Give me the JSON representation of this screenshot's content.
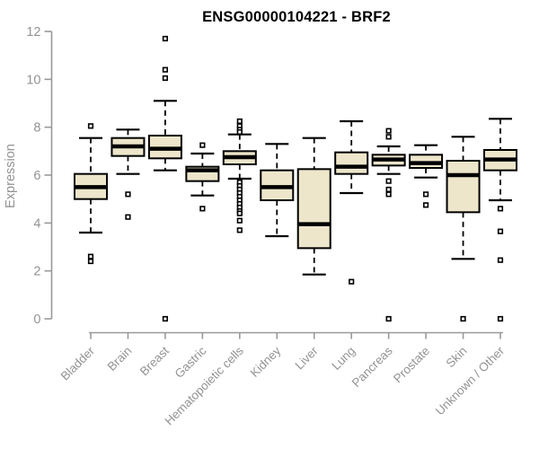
{
  "chart_data": {
    "type": "boxplot",
    "title": "ENSG00000104221 - BRF2",
    "ylabel": "Expression",
    "xlabel": "",
    "ylim": [
      0,
      12
    ],
    "yticks": [
      0,
      2,
      4,
      6,
      8,
      10,
      12
    ],
    "grid": false,
    "legend": "none",
    "categories": [
      "Bladder",
      "Brain",
      "Breast",
      "Gastric",
      "Hematopoietic cells",
      "Kidney",
      "Liver",
      "Lung",
      "Pancreas",
      "Prostate",
      "Skin",
      "Unknown / Other"
    ],
    "series": [
      {
        "name": "Bladder",
        "low": 3.6,
        "q1": 5.0,
        "median": 5.5,
        "q3": 6.05,
        "high": 7.55,
        "outliers": [
          8.05,
          2.6,
          2.4
        ]
      },
      {
        "name": "Brain",
        "low": 6.05,
        "q1": 6.8,
        "median": 7.2,
        "q3": 7.55,
        "high": 7.9,
        "outliers": [
          5.2,
          4.25
        ]
      },
      {
        "name": "Breast",
        "low": 6.2,
        "q1": 6.7,
        "median": 7.1,
        "q3": 7.65,
        "high": 9.1,
        "outliers": [
          11.7,
          10.4,
          10.05,
          0
        ]
      },
      {
        "name": "Gastric",
        "low": 5.15,
        "q1": 5.75,
        "median": 6.2,
        "q3": 6.35,
        "high": 6.9,
        "outliers": [
          7.25,
          4.6
        ]
      },
      {
        "name": "Hematopoietic cells",
        "low": 5.85,
        "q1": 6.45,
        "median": 6.75,
        "q3": 7.0,
        "high": 7.7,
        "outliers": [
          8.25,
          8.05,
          7.9,
          7.8,
          5.7,
          5.55,
          5.4,
          5.25,
          5.1,
          4.95,
          4.8,
          4.65,
          4.5,
          4.4,
          4.1,
          3.7
        ]
      },
      {
        "name": "Kidney",
        "low": 3.45,
        "q1": 4.95,
        "median": 5.5,
        "q3": 6.2,
        "high": 7.3,
        "outliers": []
      },
      {
        "name": "Liver",
        "low": 1.85,
        "q1": 2.95,
        "median": 3.95,
        "q3": 6.25,
        "high": 7.55,
        "outliers": []
      },
      {
        "name": "Lung",
        "low": 5.25,
        "q1": 6.05,
        "median": 6.35,
        "q3": 6.95,
        "high": 8.25,
        "outliers": [
          1.55
        ]
      },
      {
        "name": "Pancreas",
        "low": 6.05,
        "q1": 6.4,
        "median": 6.65,
        "q3": 6.85,
        "high": 7.2,
        "outliers": [
          7.85,
          7.6,
          5.75,
          5.4,
          5.2,
          0
        ]
      },
      {
        "name": "Prostate",
        "low": 5.9,
        "q1": 6.3,
        "median": 6.5,
        "q3": 6.85,
        "high": 7.25,
        "outliers": [
          5.2,
          4.75
        ]
      },
      {
        "name": "Skin",
        "low": 2.5,
        "q1": 4.45,
        "median": 6.0,
        "q3": 6.6,
        "high": 7.6,
        "outliers": [
          0
        ]
      },
      {
        "name": "Unknown / Other",
        "low": 4.95,
        "q1": 6.2,
        "median": 6.65,
        "q3": 7.05,
        "high": 8.35,
        "outliers": [
          4.6,
          3.65,
          2.45,
          0
        ]
      }
    ],
    "colors": {
      "box_fill": "#EDE6CB",
      "box_border": "#000000",
      "median": "#000000",
      "whisker": "#000000",
      "outlier_stroke": "#000000",
      "outlier_fill": "#FFFFFF",
      "axis": "#999999",
      "tick_label": "#939393",
      "title": "#000000"
    }
  }
}
